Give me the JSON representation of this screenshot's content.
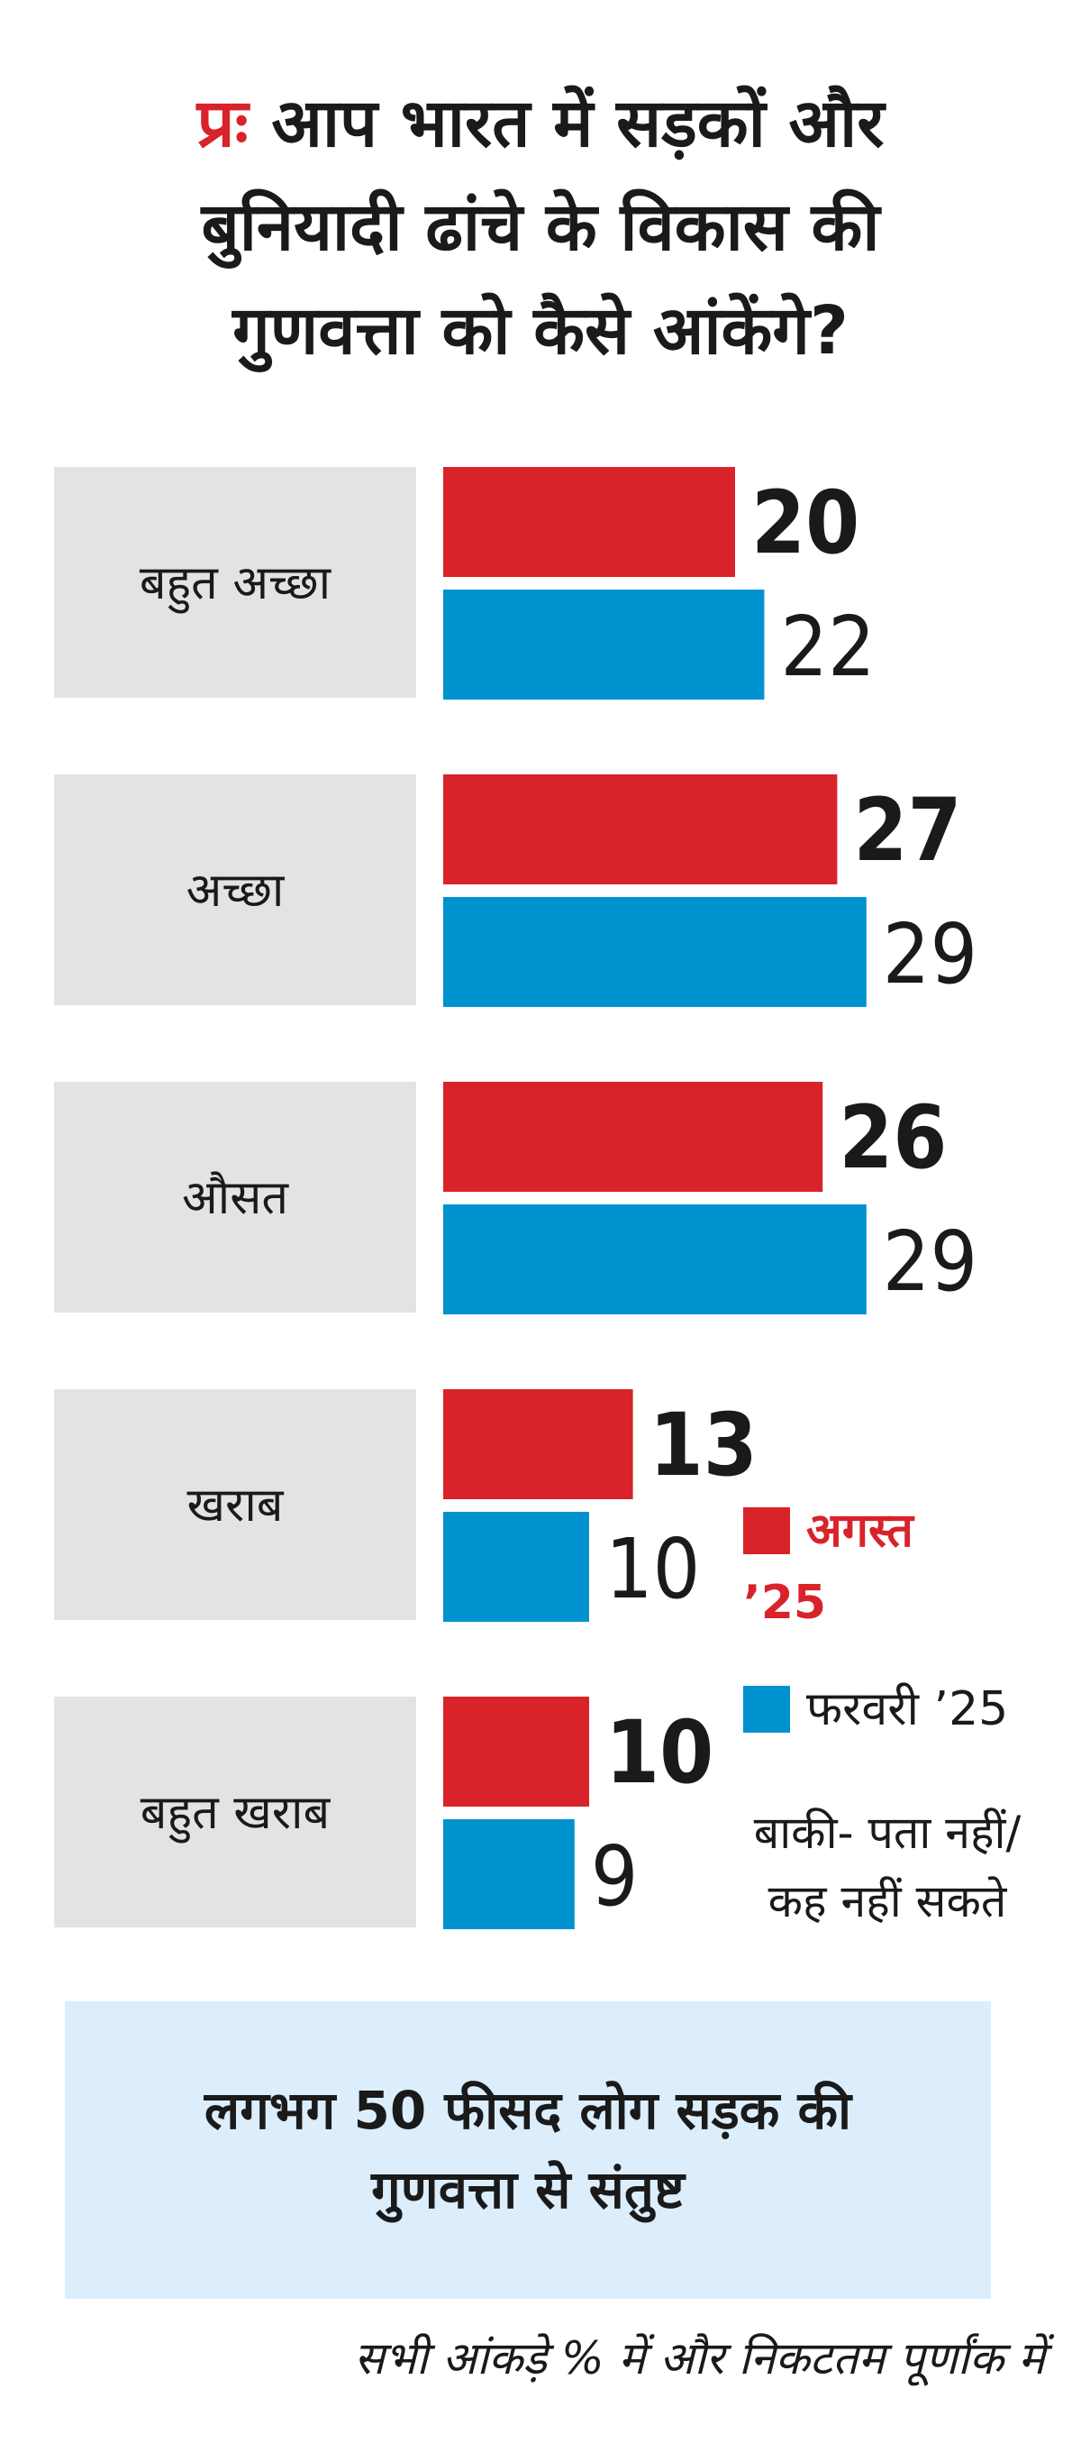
{
  "title": {
    "prefix": "प्रः",
    "text": "आप भारत में सड़कों और\nबुनियादी ढांचे के विकास की\nगुणवत्ता को कैसे आंकेंगे?"
  },
  "chart_data": {
    "type": "bar",
    "orientation": "horizontal",
    "categories": [
      "बहुत अच्छा",
      "अच्छा",
      "औसत",
      "खराब",
      "बहुत खराब"
    ],
    "series": [
      {
        "name": "अगस्त ’25",
        "color": "#d8232a",
        "values": [
          20,
          27,
          26,
          13,
          10
        ]
      },
      {
        "name": "फरवरी ’25",
        "color": "#0092cf",
        "values": [
          22,
          29,
          29,
          10,
          9
        ]
      }
    ]
  },
  "legend": {
    "august_label": "अगस्त",
    "august_year": "’25",
    "february_label": "फरवरी ’25"
  },
  "note": "बाकी- पता नहीं/\nकह नहीं सकते",
  "callout": "लगभग 50 फीसद लोग सड़क की\nगुणवत्ता से संतुष्ट",
  "footer": "सभी आंकड़े % में और निकटतम पूर्णांक में",
  "colors": {
    "august": "#d8232a",
    "february": "#0092cf",
    "label_box": "#e3e3e5",
    "callout_bg": "#dceefb"
  }
}
